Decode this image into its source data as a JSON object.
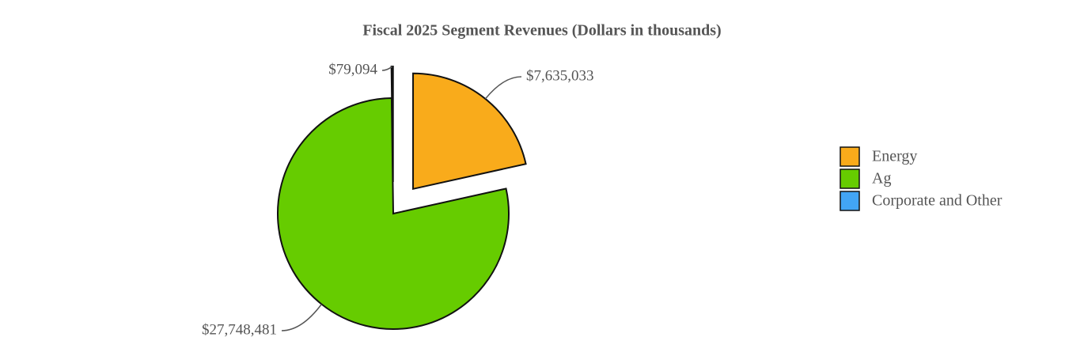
{
  "chart_data": {
    "type": "pie",
    "title": "Fiscal 2025 Segment Revenues (Dollars in thousands)",
    "categories": [
      "Energy",
      "Ag",
      "Corporate and Other"
    ],
    "values": [
      7635033,
      27748481,
      79094
    ],
    "value_labels": [
      "$7,635,033",
      "$27,748,481",
      "$79,094"
    ],
    "colors": [
      "#f9ab1b",
      "#66cc00",
      "#42a5f5"
    ]
  }
}
